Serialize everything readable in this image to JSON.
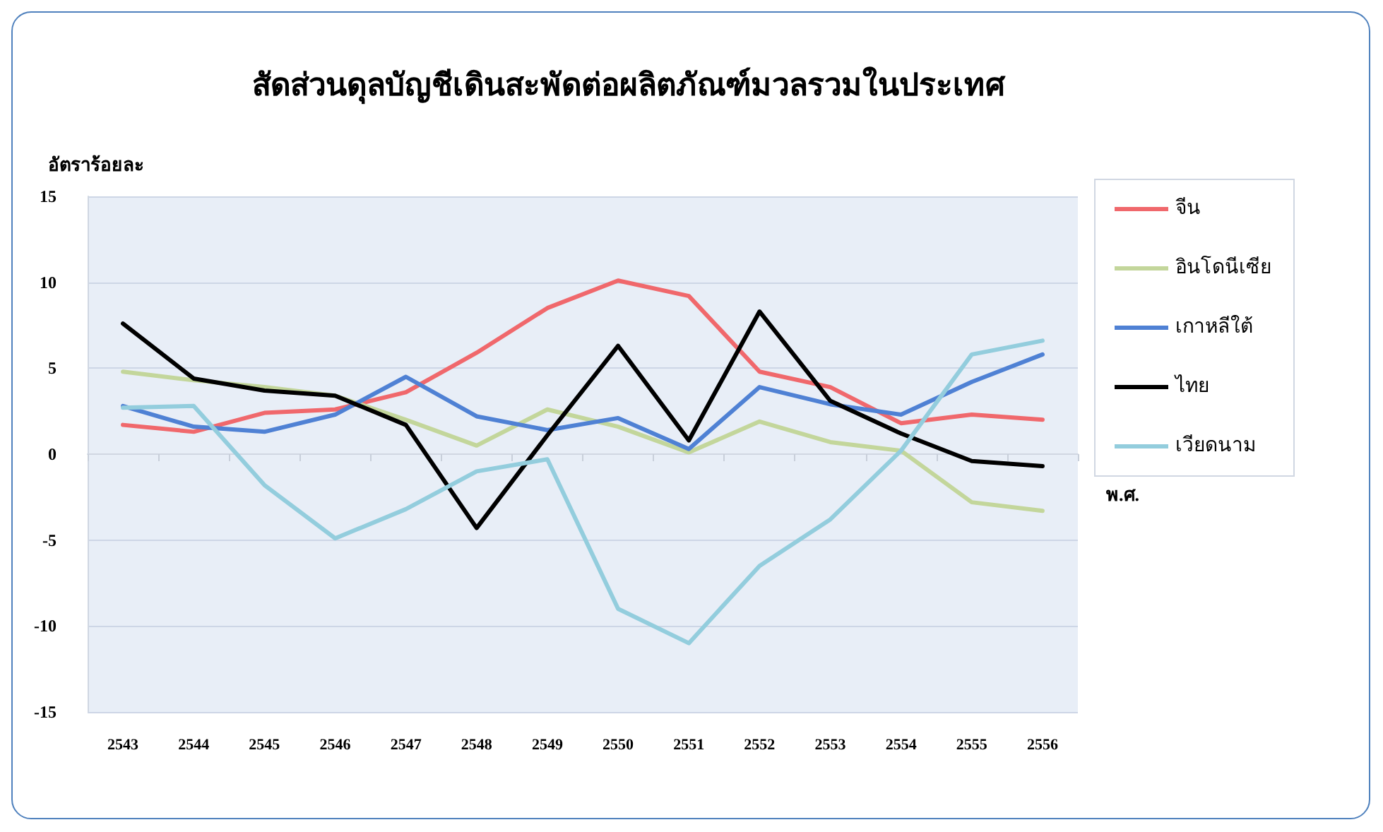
{
  "chart_data": {
    "type": "line",
    "title": "สัดส่วนดุลบัญชีเดินสะพัดต่อผลิตภัณฑ์มวลรวมในประเทศ",
    "ylabel": "อัตราร้อยละ",
    "xlabel": "พ.ศ.",
    "categories": [
      "2543",
      "2544",
      "2545",
      "2546",
      "2547",
      "2548",
      "2549",
      "2550",
      "2551",
      "2552",
      "2553",
      "2554",
      "2555",
      "2556"
    ],
    "series": [
      {
        "name": "จีน",
        "color": "#f0686c",
        "values": [
          1.7,
          1.3,
          2.4,
          2.6,
          3.6,
          5.9,
          8.5,
          10.1,
          9.2,
          4.8,
          3.9,
          1.8,
          2.3,
          2.0
        ]
      },
      {
        "name": "อินโดนีเซีย",
        "color": "#c3d69b",
        "values": [
          4.8,
          4.3,
          3.9,
          3.4,
          2.0,
          0.5,
          2.6,
          1.6,
          0.1,
          1.9,
          0.7,
          0.2,
          -2.8,
          -3.3
        ]
      },
      {
        "name": "เกาหลีใต้",
        "color": "#4f81d4",
        "values": [
          2.8,
          1.6,
          1.3,
          2.3,
          4.5,
          2.2,
          1.4,
          2.1,
          0.3,
          3.9,
          2.9,
          2.3,
          4.2,
          5.8
        ]
      },
      {
        "name": "ไทย",
        "color": "#000000",
        "values": [
          7.6,
          4.4,
          3.7,
          3.4,
          1.7,
          -4.3,
          1.1,
          6.3,
          0.8,
          8.3,
          3.1,
          1.2,
          -0.4,
          -0.7
        ]
      },
      {
        "name": "เวียดนาม",
        "color": "#93cddd",
        "values": [
          2.7,
          2.8,
          -1.8,
          -4.9,
          -3.2,
          -1.0,
          -0.3,
          -9.0,
          -11.0,
          -6.5,
          -3.8,
          0.2,
          5.8,
          6.6
        ]
      }
    ],
    "ylim": [
      -15,
      15
    ],
    "yticks": [
      -15,
      -10,
      -5,
      0,
      5,
      10,
      15
    ],
    "grid": "y",
    "legend": "right",
    "marker": "none",
    "line_style": "solid"
  }
}
